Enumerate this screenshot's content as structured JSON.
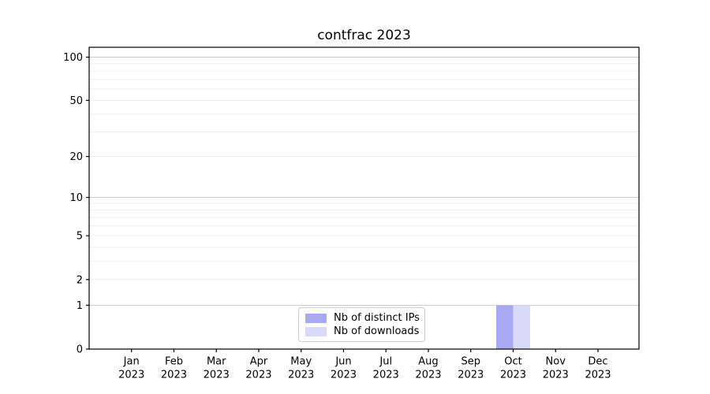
{
  "page": {
    "background": "#ffffff",
    "text_color": "#000000"
  },
  "chart_data": {
    "type": "bar",
    "title": "contfrac 2023",
    "xlabel": "",
    "ylabel": "",
    "months": [
      "Jan",
      "Feb",
      "Mar",
      "Apr",
      "May",
      "Jun",
      "Jul",
      "Aug",
      "Sep",
      "Oct",
      "Nov",
      "Dec"
    ],
    "year": "2023",
    "series": [
      {
        "name": "Nb of distinct IPs",
        "color": "#a9a9f4",
        "values": [
          0,
          0,
          0,
          0,
          0,
          0,
          0,
          0,
          0,
          1,
          0,
          0
        ]
      },
      {
        "name": "Nb of downloads",
        "color": "#d9d9f8",
        "values": [
          0,
          0,
          0,
          0,
          0,
          0,
          0,
          0,
          0,
          1,
          0,
          0
        ]
      }
    ],
    "yscale": "log1p",
    "ylim": [
      0,
      117
    ],
    "yticks": [
      0,
      1,
      2,
      5,
      10,
      20,
      50,
      100
    ],
    "grid": {
      "major_values": [
        1,
        10,
        100
      ],
      "minor_values": [
        2,
        3,
        4,
        5,
        6,
        7,
        8,
        9,
        20,
        30,
        40,
        50,
        60,
        70,
        80,
        90
      ],
      "major_color": "#c9c9c9",
      "minor_color": "#ededed"
    },
    "legend": {
      "position": "lower center"
    },
    "axis_color": "#000000"
  }
}
